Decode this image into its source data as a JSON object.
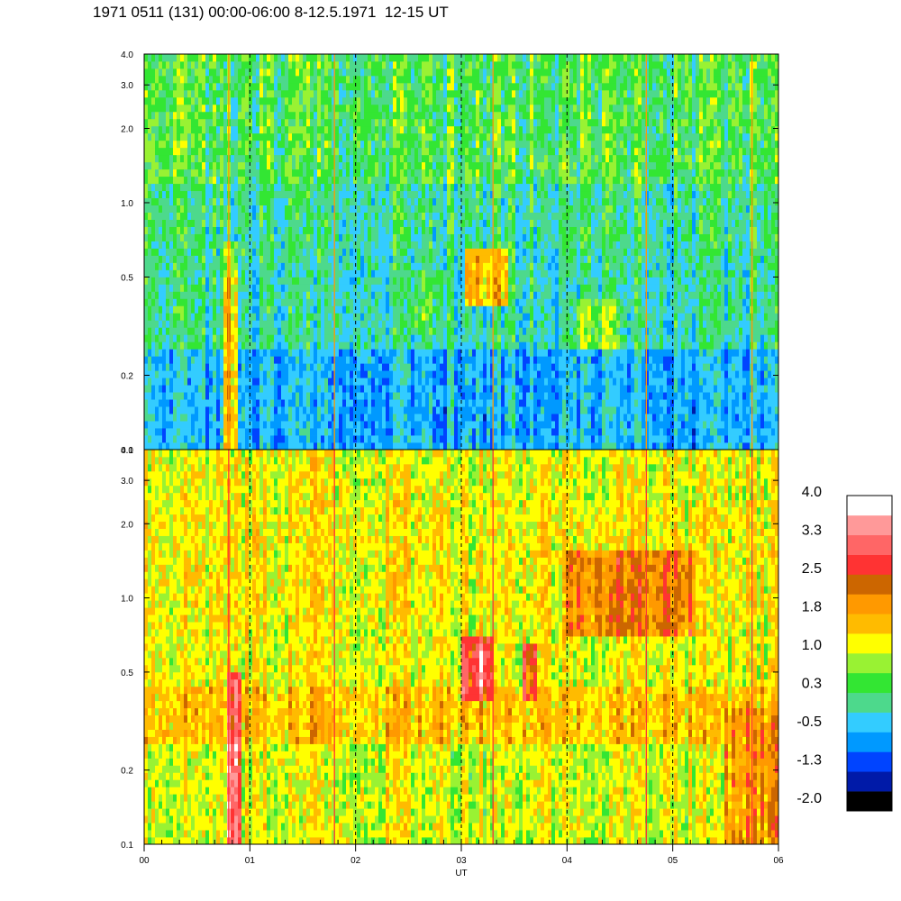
{
  "title": "1971 0511 (131) 00:00-06:00 8-12.5.1971  12-15 UT",
  "chart_data": [
    {
      "type": "heatmap",
      "panel": "top",
      "x_axis": {
        "label": "",
        "range": [
          0,
          6
        ],
        "unit": "hour"
      },
      "y_axis": {
        "scale": "log",
        "range": [
          0.1,
          4.0
        ],
        "tick_values": [
          0.1,
          0.2,
          0.5,
          1.0,
          2.0,
          3.0,
          4.0
        ],
        "tick_labels": [
          "0.1",
          "0.2",
          "0.5",
          "1.0",
          "2.0",
          "3.0",
          "4.0"
        ]
      },
      "background_levels": [
        {
          "fmax": 0.25,
          "level": -0.5
        },
        {
          "fmax": 0.6,
          "level": 0.0
        },
        {
          "fmax": 1.2,
          "level": 0.1
        },
        {
          "fmax": 4.0,
          "level": 0.4
        }
      ],
      "features": [
        {
          "t0": 3.05,
          "t1": 3.45,
          "f0": 0.38,
          "f1": 0.65,
          "level": 1.6
        },
        {
          "t0": 0.76,
          "t1": 0.88,
          "f0": 0.1,
          "f1": 0.7,
          "level": 1.7
        },
        {
          "t0": 0.76,
          "t1": 0.88,
          "f0": 0.5,
          "f1": 0.7,
          "level": 1.0
        },
        {
          "t0": 2.5,
          "t1": 2.85,
          "f0": 0.3,
          "f1": 0.55,
          "level": 0.4
        },
        {
          "t0": 4.1,
          "t1": 4.5,
          "f0": 0.25,
          "f1": 0.4,
          "level": 0.7
        }
      ],
      "dashed_lines_x": [
        1,
        2,
        3,
        4,
        5
      ]
    },
    {
      "type": "heatmap",
      "panel": "bottom",
      "x_axis": {
        "label": "UT",
        "range": [
          0,
          6
        ],
        "unit": "hour",
        "tick_values": [
          0,
          1,
          2,
          3,
          4,
          5,
          6
        ],
        "tick_labels": [
          "00",
          "01",
          "02",
          "03",
          "04",
          "05",
          "06"
        ]
      },
      "y_axis": {
        "scale": "log",
        "range": [
          0.1,
          4.0
        ],
        "tick_values": [
          0.1,
          0.2,
          0.5,
          1.0,
          2.0,
          3.0,
          4.0
        ],
        "tick_labels": [
          "0.1",
          "0.2",
          "0.5",
          "1.0",
          "2.0",
          "3.0",
          "4.0"
        ]
      },
      "background_levels": [
        {
          "fmax": 0.25,
          "level": 1.1
        },
        {
          "fmax": 0.45,
          "level": 1.6
        },
        {
          "fmax": 0.8,
          "level": 1.2
        },
        {
          "fmax": 2.5,
          "level": 1.3
        },
        {
          "fmax": 4.0,
          "level": 1.2
        }
      ],
      "features": [
        {
          "t0": 3.0,
          "t1": 3.3,
          "f0": 0.37,
          "f1": 0.68,
          "level": 2.9
        },
        {
          "t0": 3.1,
          "t1": 3.25,
          "f0": 0.43,
          "f1": 0.6,
          "level": 3.3
        },
        {
          "t0": 3.58,
          "t1": 3.7,
          "f0": 0.37,
          "f1": 0.65,
          "level": 2.6
        },
        {
          "t0": 3.62,
          "t1": 3.68,
          "f0": 0.45,
          "f1": 0.55,
          "level": 2.0
        },
        {
          "t0": 0.78,
          "t1": 0.92,
          "f0": 0.1,
          "f1": 0.5,
          "level": 2.9
        },
        {
          "t0": 0.8,
          "t1": 0.9,
          "f0": 0.1,
          "f1": 0.25,
          "level": 3.2
        },
        {
          "t0": 4.0,
          "t1": 5.2,
          "f0": 0.7,
          "f1": 1.6,
          "level": 2.2
        },
        {
          "t0": 5.5,
          "t1": 6.0,
          "f0": 0.1,
          "f1": 0.35,
          "level": 2.0
        }
      ],
      "dashed_lines_x": [
        1,
        2,
        3,
        4,
        5
      ]
    }
  ],
  "colorbar": {
    "levels": [
      -2.0,
      -1.65,
      -1.3,
      -0.9,
      -0.5,
      -0.1,
      0.3,
      0.65,
      1.0,
      1.4,
      1.8,
      2.15,
      2.5,
      2.9,
      3.3,
      3.65,
      4.0
    ],
    "colors": [
      "#000000",
      "#001aa8",
      "#0044ff",
      "#0099ff",
      "#33ccff",
      "#4dd98c",
      "#33e633",
      "#99f233",
      "#ffff00",
      "#ffbb00",
      "#ff9900",
      "#cc6600",
      "#ff3333",
      "#ff6666",
      "#ff9999",
      "#ffffff"
    ],
    "labels": [
      "4.0",
      "3.3",
      "2.5",
      "1.8",
      "1.0",
      "0.3",
      "-0.5",
      "-1.3",
      "-2.0"
    ]
  }
}
